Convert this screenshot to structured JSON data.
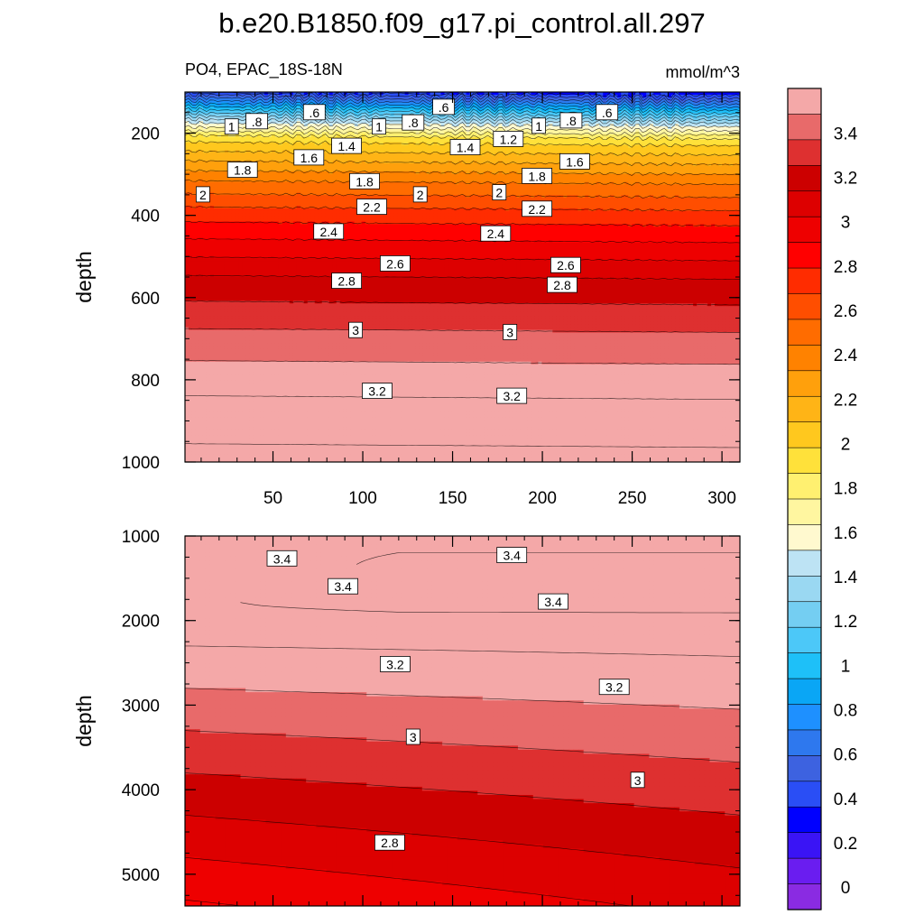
{
  "title": "b.e20.B1850.f09_g17.pi_control.all.297",
  "subtitle_left": "PO4, EPAC_18S-18N",
  "subtitle_right": "mmol/m^3",
  "colors": {
    "levels": [
      "#8a2be2",
      "#6a1df0",
      "#3a14f5",
      "#0000ff",
      "#2a4ef5",
      "#3d62e0",
      "#2e78ee",
      "#1e90ff",
      "#0aa6f5",
      "#1ec0f8",
      "#4cc8f8",
      "#74cef2",
      "#9ad8f2",
      "#bde3f4",
      "#fff9cf",
      "#fff6a0",
      "#fff070",
      "#ffe13a",
      "#ffc81e",
      "#ffb416",
      "#ffa00c",
      "#ff8200",
      "#ff6c00",
      "#ff4e00",
      "#ff2c00",
      "#ff0000",
      "#ee0000",
      "#dd0000",
      "#cc0000",
      "#de3030",
      "#e86a6a",
      "#f4a8a8"
    ],
    "hatch_line": "#000000"
  },
  "chart_data": {
    "type": "contour",
    "variable": "PO4",
    "region": "EPAC_18S-18N",
    "units": "mmol/m^3",
    "xlabel": "",
    "ylabel": "depth",
    "xlim": [
      1,
      310
    ],
    "x_ticks": [
      "50",
      "100",
      "150",
      "200",
      "250",
      "300"
    ],
    "panels": [
      {
        "name": "upper",
        "ylim": [
          100,
          1000
        ],
        "y_ticks": [
          "200",
          "400",
          "600",
          "800",
          "1000"
        ],
        "contour_levels": [
          0.6,
          0.8,
          1.0,
          1.2,
          1.4,
          1.6,
          1.8,
          2.0,
          2.2,
          2.4,
          2.6,
          2.8,
          3.0,
          3.2
        ],
        "contour_labels": [
          {
            "text": ".6",
            "x": 73,
            "y": 150
          },
          {
            "text": ".8",
            "x": 41,
            "y": 172
          },
          {
            "text": "1",
            "x": 27,
            "y": 185
          },
          {
            "text": ".8",
            "x": 128,
            "y": 175
          },
          {
            "text": ".6",
            "x": 145,
            "y": 137
          },
          {
            "text": "1",
            "x": 109,
            "y": 185
          },
          {
            "text": "1.4",
            "x": 91,
            "y": 232
          },
          {
            "text": "1.6",
            "x": 70,
            "y": 260
          },
          {
            "text": "1.4",
            "x": 157,
            "y": 235
          },
          {
            "text": "1.2",
            "x": 181,
            "y": 215
          },
          {
            "text": "1",
            "x": 198,
            "y": 183
          },
          {
            "text": ".8",
            "x": 216,
            "y": 170
          },
          {
            "text": ".6",
            "x": 236,
            "y": 150
          },
          {
            "text": "1.8",
            "x": 33,
            "y": 290
          },
          {
            "text": "2",
            "x": 11,
            "y": 350
          },
          {
            "text": "1.8",
            "x": 101,
            "y": 318
          },
          {
            "text": "2",
            "x": 132,
            "y": 350
          },
          {
            "text": "2",
            "x": 176,
            "y": 345
          },
          {
            "text": "1.8",
            "x": 197,
            "y": 305
          },
          {
            "text": "1.6",
            "x": 218,
            "y": 270
          },
          {
            "text": "2.2",
            "x": 105,
            "y": 380
          },
          {
            "text": "2.2",
            "x": 197,
            "y": 385
          },
          {
            "text": "2.4",
            "x": 81,
            "y": 440
          },
          {
            "text": "2.4",
            "x": 174,
            "y": 445
          },
          {
            "text": "2.6",
            "x": 118,
            "y": 518
          },
          {
            "text": "2.6",
            "x": 213,
            "y": 522
          },
          {
            "text": "2.8",
            "x": 91,
            "y": 560
          },
          {
            "text": "2.8",
            "x": 211,
            "y": 570
          },
          {
            "text": "3",
            "x": 96,
            "y": 680
          },
          {
            "text": "3",
            "x": 182,
            "y": 685
          },
          {
            "text": "3.2",
            "x": 108,
            "y": 828
          },
          {
            "text": "3.2",
            "x": 183,
            "y": 840
          }
        ]
      },
      {
        "name": "lower",
        "ylim": [
          1000,
          5375
        ],
        "y_ticks": [
          "1000",
          "2000",
          "3000",
          "4000",
          "5000"
        ],
        "contour_levels": [
          2.8,
          2.9,
          3.0,
          3.1,
          3.2,
          3.3,
          3.4
        ],
        "contour_labels": [
          {
            "text": "3.4",
            "x": 55,
            "y": 1270
          },
          {
            "text": "3.4",
            "x": 89,
            "y": 1600
          },
          {
            "text": "3.4",
            "x": 183,
            "y": 1230
          },
          {
            "text": "3.4",
            "x": 206,
            "y": 1780
          },
          {
            "text": "3.2",
            "x": 118,
            "y": 2520
          },
          {
            "text": "3.2",
            "x": 240,
            "y": 2790
          },
          {
            "text": "3",
            "x": 128,
            "y": 3380
          },
          {
            "text": "3",
            "x": 253,
            "y": 3890
          },
          {
            "text": "2.8",
            "x": 115,
            "y": 4630
          }
        ]
      }
    ],
    "colorbar": {
      "labels": [
        "3.4",
        "3.2",
        "3",
        "2.8",
        "2.6",
        "2.4",
        "2.2",
        "2",
        "1.8",
        "1.6",
        "1.4",
        "1.2",
        "1",
        "0.8",
        "0.6",
        "0.4",
        "0.2",
        "0"
      ],
      "levels": [
        0,
        0.1,
        0.2,
        0.3,
        0.4,
        0.5,
        0.6,
        0.7,
        0.8,
        0.9,
        1.0,
        1.1,
        1.2,
        1.3,
        1.4,
        1.5,
        1.6,
        1.7,
        1.8,
        1.9,
        2.0,
        2.1,
        2.2,
        2.3,
        2.4,
        2.5,
        2.6,
        2.7,
        2.8,
        2.9,
        3.0,
        3.1,
        3.2,
        3.3,
        3.4,
        3.5
      ]
    }
  }
}
